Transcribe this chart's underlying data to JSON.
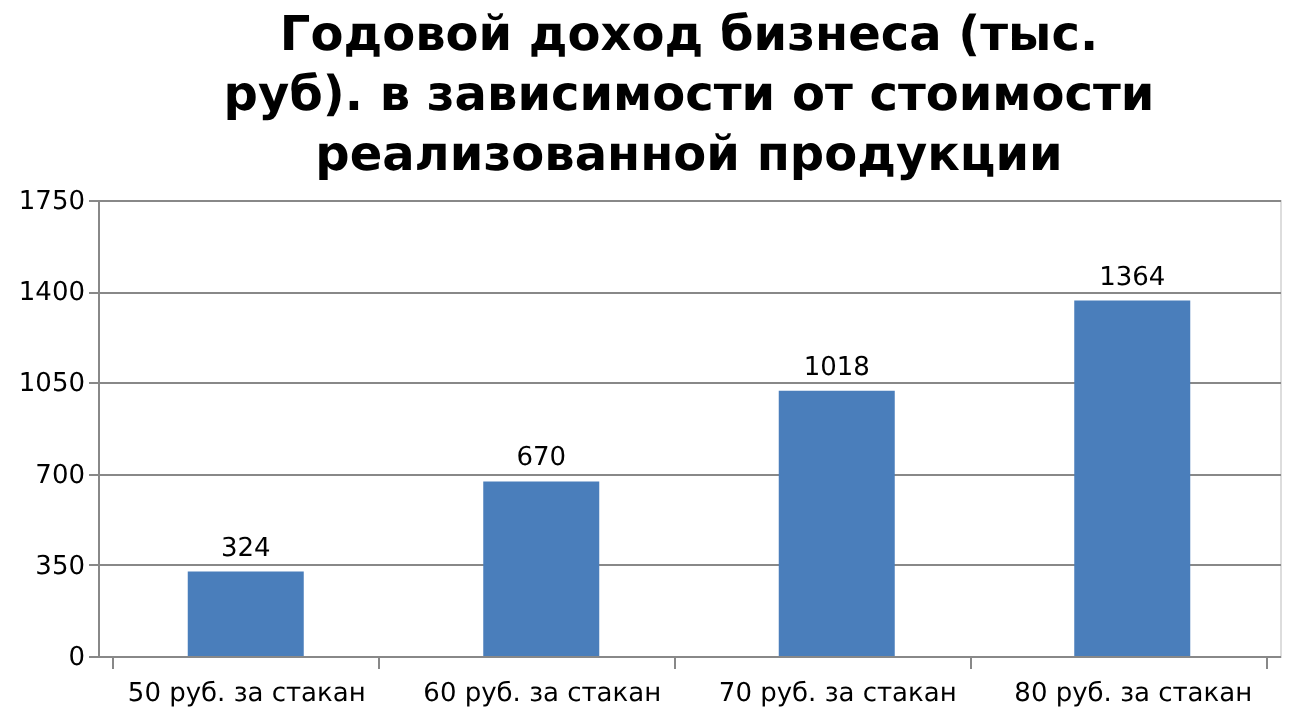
{
  "chart_data": {
    "type": "bar",
    "title": "Годовой доход бизнеса (тыс. руб). в зависимости от стоимости реализованной продукции",
    "categories": [
      "50 руб. за стакан",
      "60 руб. за стакан",
      "70 руб. за стакан",
      "80 руб. за стакан"
    ],
    "values": [
      324,
      670,
      1018,
      1364
    ],
    "color": "#4a7ebb",
    "ylim": [
      0,
      1750
    ],
    "yticks": [
      0,
      350,
      700,
      1050,
      1400,
      1750
    ],
    "grid": "y",
    "data_labels": true
  }
}
